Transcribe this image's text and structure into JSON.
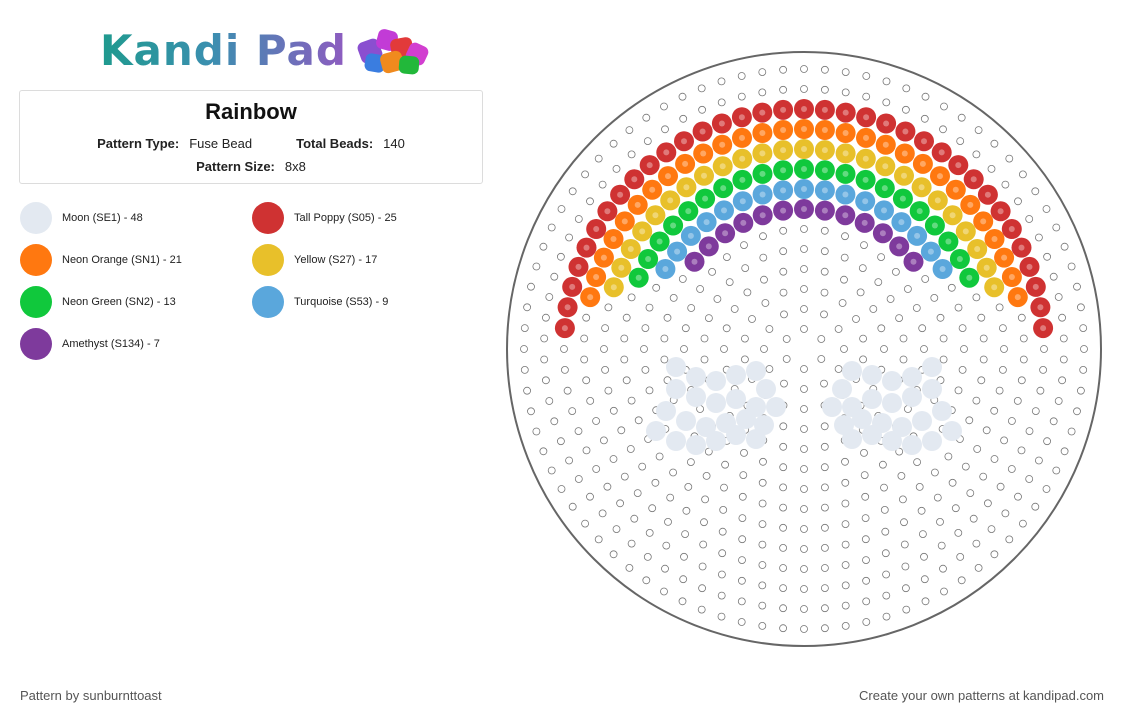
{
  "brand": {
    "name": "Kandi Pad"
  },
  "pattern": {
    "title": "Rainbow",
    "type_label": "Pattern Type:",
    "type_value": "Fuse Bead",
    "total_label": "Total Beads:",
    "total_value": "140",
    "size_label": "Pattern Size:",
    "size_value": "8x8"
  },
  "legend": [
    {
      "label": "Moon (SE1) - 48",
      "color": "#e3e9f1"
    },
    {
      "label": "Tall Poppy (S05) - 25",
      "color": "#cf3232"
    },
    {
      "label": "Neon Orange (SN1) - 21",
      "color": "#ff7810"
    },
    {
      "label": "Yellow (S27) - 17",
      "color": "#e8c02a"
    },
    {
      "label": "Neon Green (SN2) - 13",
      "color": "#10c83c"
    },
    {
      "label": "Turquoise (S53) - 9",
      "color": "#5aa7dc"
    },
    {
      "label": "Amethyst (S134) - 7",
      "color": "#7e3a9c"
    }
  ],
  "board": {
    "shape": "circle",
    "empty_peg_color": "#ffffff",
    "rim_color": "#666666"
  },
  "footer": {
    "credit": "Pattern by sunburnttoast",
    "cta": "Create your own patterns at kandipad.com"
  }
}
